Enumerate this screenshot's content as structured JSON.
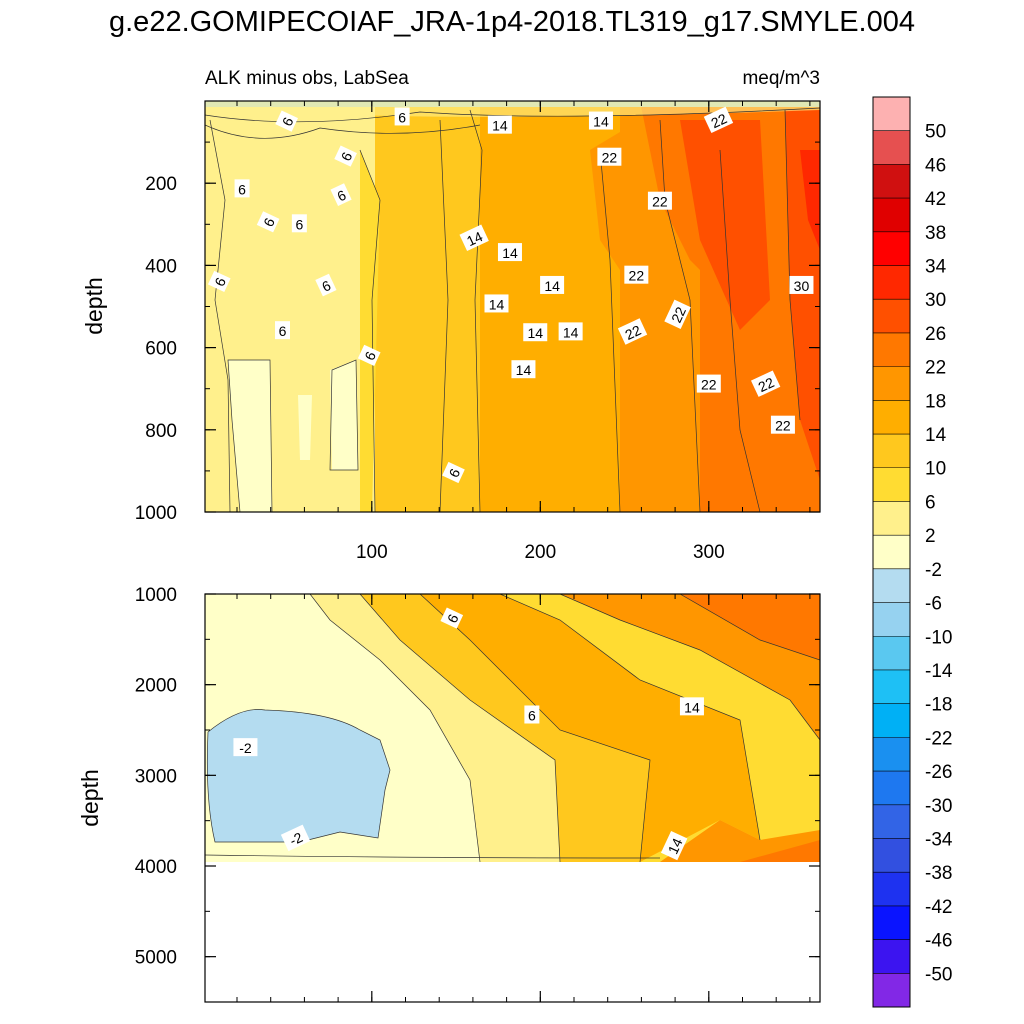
{
  "figure": {
    "title": "g.e22.GOMIPECOIAF_JRA-1p4-2018.TL319_g17.SMYLE.004",
    "subtitle_left": "ALK minus obs, LabSea",
    "subtitle_right": "meq/m^3"
  },
  "chart_data": {
    "type": "heatmap",
    "description_free": true,
    "x_range": [
      1,
      366
    ],
    "x_ticks": [
      100,
      200,
      300
    ],
    "x_tick_labels": [
      "100",
      "200",
      "300"
    ],
    "top_panel": {
      "ylabel": "depth",
      "ylim": [
        0,
        1000
      ],
      "y_ticks": [
        200,
        400,
        600,
        800,
        1000
      ],
      "y_tick_labels": [
        "200",
        "400",
        "600",
        "800",
        "1000"
      ],
      "contour_labels": [
        {
          "text": "6",
          "x": 50,
          "y": 50
        },
        {
          "text": "6",
          "x": 118,
          "y": 40
        },
        {
          "text": "14",
          "x": 176,
          "y": 60
        },
        {
          "text": "14",
          "x": 236,
          "y": 50
        },
        {
          "text": "22",
          "x": 306,
          "y": 48
        },
        {
          "text": "6",
          "x": 85,
          "y": 135
        },
        {
          "text": "22",
          "x": 241,
          "y": 138
        },
        {
          "text": "6",
          "x": 23,
          "y": 215
        },
        {
          "text": "6",
          "x": 82,
          "y": 230
        },
        {
          "text": "22",
          "x": 271,
          "y": 245
        },
        {
          "text": "6",
          "x": 39,
          "y": 295
        },
        {
          "text": "6",
          "x": 57,
          "y": 300
        },
        {
          "text": "14",
          "x": 161,
          "y": 335
        },
        {
          "text": "14",
          "x": 182,
          "y": 370
        },
        {
          "text": "22",
          "x": 257,
          "y": 425
        },
        {
          "text": "6",
          "x": 10,
          "y": 440
        },
        {
          "text": "6",
          "x": 73,
          "y": 450
        },
        {
          "text": "14",
          "x": 207,
          "y": 450
        },
        {
          "text": "30",
          "x": 355,
          "y": 450
        },
        {
          "text": "14",
          "x": 174,
          "y": 495
        },
        {
          "text": "22",
          "x": 282,
          "y": 520
        },
        {
          "text": "6",
          "x": 47,
          "y": 560
        },
        {
          "text": "14",
          "x": 197,
          "y": 565
        },
        {
          "text": "14",
          "x": 218,
          "y": 563
        },
        {
          "text": "22",
          "x": 255,
          "y": 563
        },
        {
          "text": "6",
          "x": 99,
          "y": 620
        },
        {
          "text": "14",
          "x": 190,
          "y": 655
        },
        {
          "text": "22",
          "x": 300,
          "y": 690
        },
        {
          "text": "22",
          "x": 334,
          "y": 690
        },
        {
          "text": "22",
          "x": 344,
          "y": 790
        },
        {
          "text": "6",
          "x": 149,
          "y": 905
        }
      ]
    },
    "bottom_panel": {
      "ylabel": "depth",
      "ylim": [
        1000,
        5500
      ],
      "data_depth_limit": 3880,
      "y_ticks": [
        1000,
        2000,
        3000,
        4000,
        5000
      ],
      "y_tick_labels": [
        "1000",
        "2000",
        "3000",
        "4000",
        "5000"
      ],
      "contour_labels": [
        {
          "text": "6",
          "x": 148,
          "y": 1270
        },
        {
          "text": "14",
          "x": 290,
          "y": 2250
        },
        {
          "text": "6",
          "x": 195,
          "y": 2340
        },
        {
          "text": "-2",
          "x": 25,
          "y": 2700
        },
        {
          "text": "-2",
          "x": 55,
          "y": 3700
        },
        {
          "text": "14",
          "x": 280,
          "y": 3780
        }
      ]
    },
    "colorbar": {
      "levels": [
        50,
        46,
        42,
        38,
        34,
        30,
        26,
        22,
        18,
        14,
        10,
        6,
        2,
        -2,
        -6,
        -10,
        -14,
        -18,
        -22,
        -26,
        -30,
        -34,
        -38,
        -42,
        -46,
        -50
      ],
      "level_labels": [
        "50",
        "46",
        "42",
        "38",
        "34",
        "30",
        "26",
        "22",
        "18",
        "14",
        "10",
        "6",
        "2",
        "-2",
        "-6",
        "-10",
        "-14",
        "-18",
        "-22",
        "-26",
        "-30",
        "-34",
        "-38",
        "-42",
        "-46",
        "-50"
      ],
      "colors": [
        "#fdb1b1",
        "#e65050",
        "#d01010",
        "#e00000",
        "#ff0000",
        "#ff2800",
        "#ff5000",
        "#ff7800",
        "#ff9600",
        "#ffae00",
        "#ffc81e",
        "#ffdc32",
        "#fff08c",
        "#ffffc8",
        "#b4dcf0",
        "#96d2f0",
        "#5ac8f0",
        "#1ec0f5",
        "#00b0f5",
        "#1a90f0",
        "#1e78f0",
        "#3264e6",
        "#3250e0",
        "#1e32f0",
        "#0a14ff",
        "#3c14f0",
        "#8228e6"
      ]
    }
  }
}
